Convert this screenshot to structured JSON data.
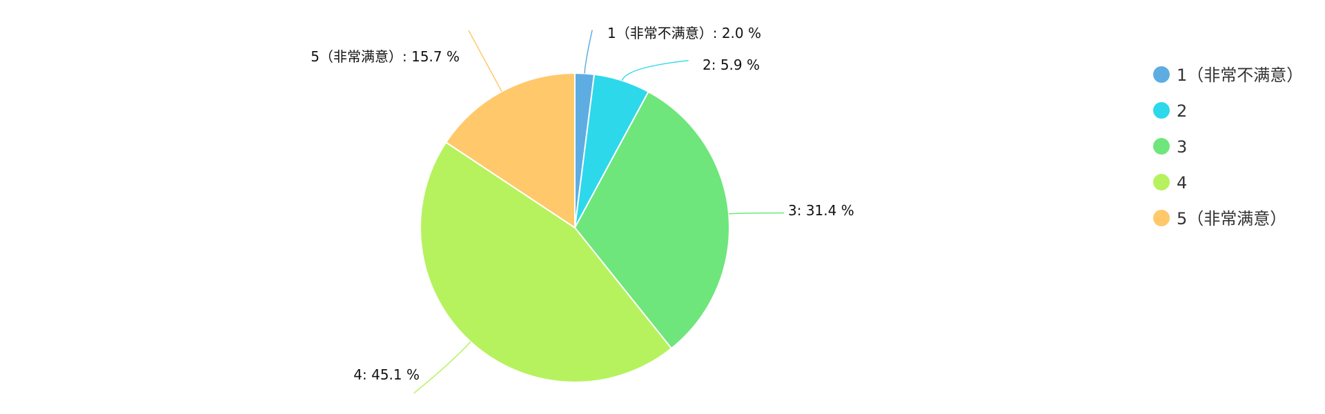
{
  "chart_data": {
    "type": "pie",
    "title": "",
    "unit": "%",
    "slices": [
      {
        "name": "1（非常不满意）",
        "value": 2.0,
        "label": "1（非常不满意）: 2.0 %",
        "color": "#5dade2"
      },
      {
        "name": "2",
        "value": 5.9,
        "label": "2: 5.9 %",
        "color": "#2dd8ea"
      },
      {
        "name": "3",
        "value": 31.4,
        "label": "3: 31.4 %",
        "color": "#6ee67b"
      },
      {
        "name": "4",
        "value": 45.1,
        "label": "4: 45.1 %",
        "color": "#b6f25e"
      },
      {
        "name": "5（非常满意）",
        "value": 15.7,
        "label": "5（非常满意）: 15.7 %",
        "color": "#ffc86b"
      }
    ],
    "start_angle_deg": 0,
    "direction": "clockwise",
    "legend": {
      "placement": "right",
      "items": [
        "1（非常不满意）",
        "2",
        "3",
        "4",
        "5（非常满意）"
      ]
    }
  }
}
